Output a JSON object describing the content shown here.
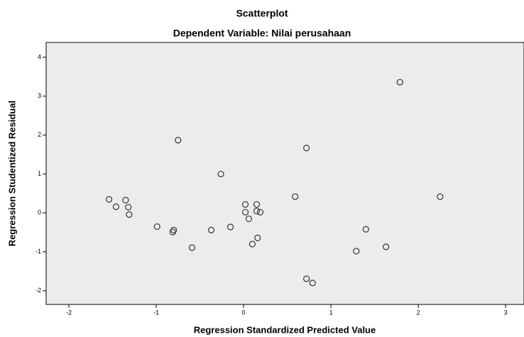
{
  "chart_data": {
    "type": "scatter",
    "title": "Scatterplot",
    "subtitle": "Dependent Variable: Nilai perusahaan",
    "x_label": "Regression Standardized Predicted Value",
    "y_label": "Regression Studentized Residual",
    "xlim": [
      -2.26,
      3.21
    ],
    "ylim": [
      -2.35,
      4.38
    ],
    "xticks": [
      -2,
      -1,
      0,
      1,
      2,
      3
    ],
    "yticks": [
      -2,
      -1,
      0,
      1,
      2,
      3,
      4
    ],
    "color": "#333333",
    "background": "#ececec",
    "x": [
      1.79,
      -0.75,
      0.72,
      -0.26,
      0.59,
      2.25,
      -1.54,
      -1.46,
      -1.35,
      -1.32,
      -1.31,
      0.02,
      0.15,
      0.02,
      0.15,
      0.19,
      0.06,
      -0.99,
      -0.8,
      -0.81,
      -0.37,
      -0.15,
      0.16,
      0.1,
      -0.59,
      1.4,
      1.29,
      1.63,
      0.72,
      0.79
    ],
    "values": [
      3.36,
      1.87,
      1.67,
      1.0,
      0.42,
      0.42,
      0.35,
      0.16,
      0.33,
      0.15,
      -0.04,
      0.22,
      0.22,
      0.02,
      0.05,
      0.02,
      -0.15,
      -0.35,
      -0.44,
      -0.49,
      -0.44,
      -0.36,
      -0.64,
      -0.8,
      -0.89,
      -0.42,
      -0.98,
      -0.87,
      -1.69,
      -1.8
    ]
  }
}
